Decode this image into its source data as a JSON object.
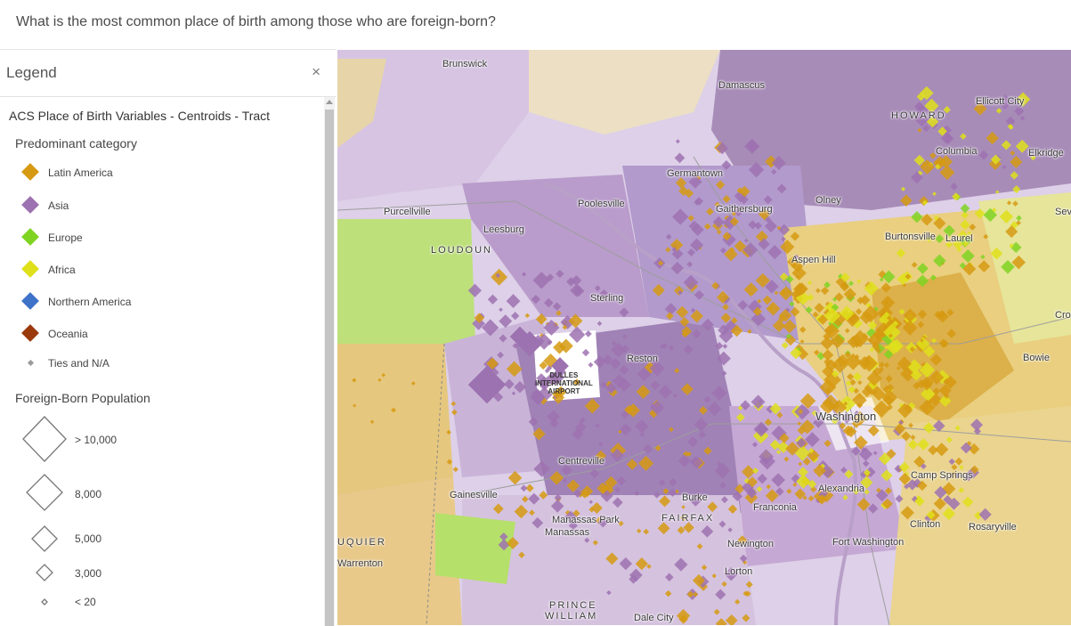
{
  "question": "What is the most common place of birth among those who are foreign-born?",
  "legend": {
    "title": "Legend",
    "close": "×",
    "layer_title": "ACS Place of Birth Variables - Centroids - Tract",
    "category_title": "Predominant category",
    "categories": [
      {
        "label": "Latin America",
        "color": "#d69a12"
      },
      {
        "label": "Asia",
        "color": "#9d72b0"
      },
      {
        "label": "Europe",
        "color": "#7fd422"
      },
      {
        "label": "Africa",
        "color": "#dfe01a"
      },
      {
        "label": "Northern America",
        "color": "#3f72c9"
      },
      {
        "label": "Oceania",
        "color": "#9a3a0c"
      },
      {
        "label": "Ties and N/A",
        "color": "#9a9a9a"
      }
    ],
    "size_title": "Foreign-Born Population",
    "sizes": [
      {
        "label": "> 10,000"
      },
      {
        "label": "8,000"
      },
      {
        "label": "5,000"
      },
      {
        "label": "3,000"
      },
      {
        "label": "< 20"
      }
    ]
  },
  "map": {
    "places": {
      "brunswick": "Brunswick",
      "damascus": "Damascus",
      "ellicott": "Ellicott City",
      "howard": "HOWARD",
      "columbia": "Columbia",
      "elkridge": "Elkridge",
      "germantown": "Germantown",
      "poolesville": "Poolesville",
      "purcellville": "Purcellville",
      "gaithersburg": "Gaithersburg",
      "olney": "Olney",
      "sev": "Sev",
      "leesburg": "Leesburg",
      "loudoun": "LOUDOUN",
      "burtonsville": "Burtonsville",
      "laurel": "Laurel",
      "aspenhill": "Aspen Hill",
      "sterling": "Sterling",
      "cro": "Cro",
      "reston": "Reston",
      "bowie": "Bowie",
      "washington": "Washington",
      "centreville": "Centreville",
      "alexandria": "Alexandria",
      "campsprings": "Camp Springs",
      "gainesville": "Gainesville",
      "burke": "Burke",
      "franconia": "Franconia",
      "manassaspark": "Manassas Park",
      "manassas": "Manassas",
      "fairfax": "FAIRFAX",
      "clinton": "Clinton",
      "rosaryville": "Rosaryville",
      "fauquier": "UQUIER",
      "newington": "Newington",
      "fortwashington": "Fort Washington",
      "warrenton": "Warrenton",
      "lorton": "Lorton",
      "princewilliam1": "PRINCE",
      "princewilliam2": "WILLIAM",
      "dalecity": "Dale City"
    },
    "airport": [
      "DULLES",
      "INTERNATIONAL",
      "AIRPORT"
    ]
  }
}
